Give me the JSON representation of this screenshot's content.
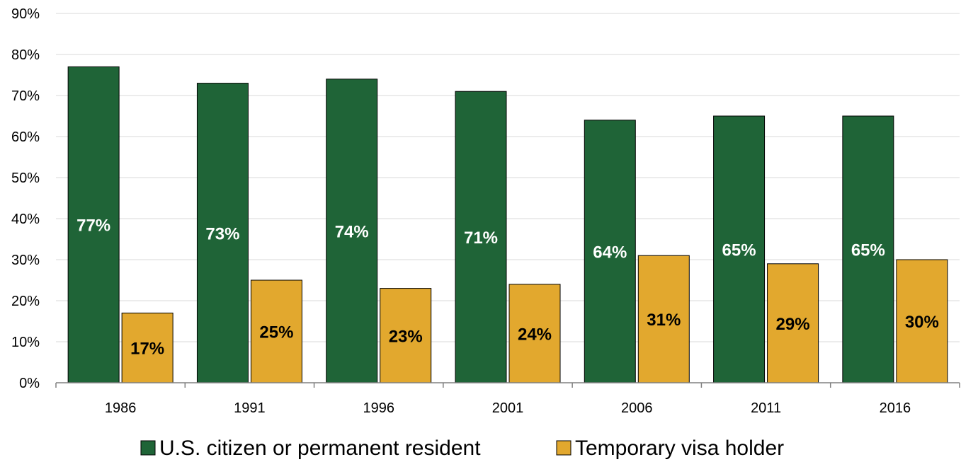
{
  "chart_data": {
    "type": "bar",
    "categories": [
      "1986",
      "1991",
      "1996",
      "2001",
      "2006",
      "2011",
      "2016"
    ],
    "series": [
      {
        "name": "U.S. citizen or permanent resident",
        "values": [
          77,
          73,
          74,
          71,
          64,
          65,
          65
        ],
        "labels": [
          "77%",
          "73%",
          "74%",
          "71%",
          "64%",
          "65%",
          "65%"
        ],
        "color": "#1f6437",
        "label_color": "#ffffff"
      },
      {
        "name": "Temporary visa holder",
        "values": [
          17,
          25,
          23,
          24,
          31,
          29,
          30
        ],
        "labels": [
          "17%",
          "25%",
          "23%",
          "24%",
          "31%",
          "29%",
          "30%"
        ],
        "color": "#e2a82e",
        "label_color": "#000000"
      }
    ],
    "ylim": [
      0,
      90
    ],
    "yticks": [
      "0%",
      "10%",
      "20%",
      "30%",
      "40%",
      "50%",
      "60%",
      "70%",
      "80%",
      "90%"
    ],
    "grid": true,
    "legend_position": "bottom",
    "title": "",
    "xlabel": "",
    "ylabel": ""
  }
}
